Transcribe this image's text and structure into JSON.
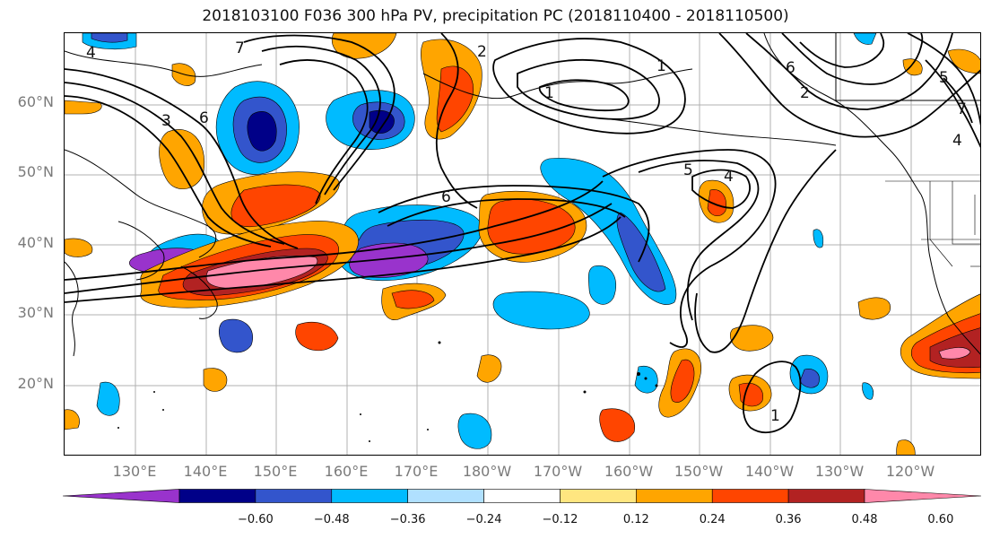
{
  "title": "2018103100 F036 300 hPa PV, precipitation PC (2018110400 - 2018110500)",
  "lat_labels": [
    "60°N",
    "50°N",
    "40°N",
    "30°N",
    "20°N"
  ],
  "lon_labels": [
    "130°E",
    "140°E",
    "150°E",
    "160°E",
    "170°E",
    "180°W",
    "170°W",
    "160°W",
    "150°W",
    "140°W",
    "130°W",
    "120°W"
  ],
  "contour_labels": [
    "4",
    "7",
    "3",
    "6",
    "6",
    "2",
    "1",
    "1",
    "5",
    "4",
    "6",
    "5",
    "2",
    "7",
    "4",
    "1"
  ],
  "colorbar": {
    "colors": [
      "#9933cc",
      "#000088",
      "#3355cc",
      "#00bbff",
      "#b0e0ff",
      "#ffffff",
      "#ffe680",
      "#ffa500",
      "#ff4500",
      "#b22222",
      "#ff88aa"
    ],
    "tick_labels": [
      "−0.60",
      "−0.48",
      "−0.36",
      "−0.24",
      "−0.12",
      "0.12",
      "0.24",
      "0.36",
      "0.48",
      "0.60"
    ]
  }
}
